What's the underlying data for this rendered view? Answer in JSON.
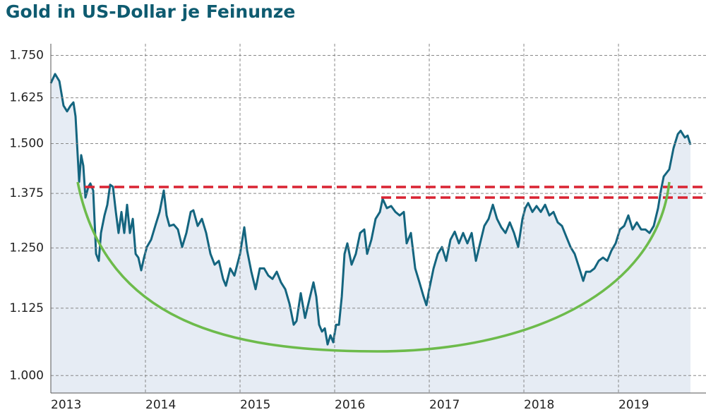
{
  "chart_data": {
    "type": "line",
    "title": "Gold in US-Dollar je Feinunze",
    "log_scale": true,
    "grid": true,
    "xlim": [
      2013,
      2019.925
    ],
    "xticks": [
      2013,
      2014,
      2015,
      2016,
      2017,
      2018,
      2019
    ],
    "ylim": [
      970,
      1786
    ],
    "yticks": [
      {
        "value": 1000,
        "label": "1.000"
      },
      {
        "value": 1125,
        "label": "1.125"
      },
      {
        "value": 1250,
        "label": "1.250"
      },
      {
        "value": 1375,
        "label": "1.375"
      },
      {
        "value": 1500,
        "label": "1.500"
      },
      {
        "value": 1625,
        "label": "1.625"
      },
      {
        "value": 1750,
        "label": "1.750"
      }
    ],
    "series": [
      {
        "color": "#14657f",
        "x": [
          2013.0,
          2013.045,
          2013.09,
          2013.134,
          2013.172,
          2013.209,
          2013.239,
          2013.261,
          2013.299,
          2013.321,
          2013.343,
          2013.366,
          2013.396,
          2013.418,
          2013.448,
          2013.478,
          2013.507,
          2013.53,
          2013.567,
          2013.597,
          2013.627,
          2013.657,
          2013.687,
          2013.716,
          2013.746,
          2013.776,
          2013.806,
          2013.836,
          2013.866,
          2013.896,
          2013.925,
          2013.955,
          2013.985,
          2014.015,
          2014.06,
          2014.104,
          2014.149,
          2014.194,
          2014.224,
          2014.254,
          2014.299,
          2014.343,
          2014.388,
          2014.433,
          2014.478,
          2014.507,
          2014.552,
          2014.597,
          2014.642,
          2014.687,
          2014.731,
          2014.776,
          2014.821,
          2014.851,
          2014.896,
          2014.94,
          2015.0,
          2015.045,
          2015.075,
          2015.119,
          2015.164,
          2015.209,
          2015.254,
          2015.299,
          2015.343,
          2015.388,
          2015.433,
          2015.478,
          2015.522,
          2015.567,
          2015.597,
          2015.642,
          2015.687,
          2015.731,
          2015.776,
          2015.806,
          2015.836,
          2015.866,
          2015.896,
          2015.925,
          2015.955,
          2015.985,
          2016.015,
          2016.045,
          2016.075,
          2016.104,
          2016.134,
          2016.179,
          2016.224,
          2016.269,
          2016.313,
          2016.343,
          2016.388,
          2016.433,
          2016.478,
          2016.507,
          2016.552,
          2016.597,
          2016.642,
          2016.687,
          2016.731,
          2016.761,
          2016.806,
          2016.851,
          2016.896,
          2016.94,
          2016.97,
          2017.0,
          2017.045,
          2017.09,
          2017.134,
          2017.179,
          2017.224,
          2017.269,
          2017.313,
          2017.358,
          2017.403,
          2017.448,
          2017.493,
          2017.537,
          2017.582,
          2017.627,
          2017.672,
          2017.716,
          2017.761,
          2017.806,
          2017.851,
          2017.896,
          2017.94,
          2017.985,
          2018.015,
          2018.045,
          2018.09,
          2018.134,
          2018.179,
          2018.224,
          2018.269,
          2018.313,
          2018.358,
          2018.403,
          2018.448,
          2018.493,
          2018.537,
          2018.582,
          2018.627,
          2018.657,
          2018.701,
          2018.746,
          2018.791,
          2018.836,
          2018.881,
          2018.925,
          2018.97,
          2019.015,
          2019.06,
          2019.104,
          2019.149,
          2019.194,
          2019.239,
          2019.284,
          2019.328,
          2019.373,
          2019.418,
          2019.448,
          2019.478,
          2019.507,
          2019.537,
          2019.582,
          2019.627,
          2019.657,
          2019.701,
          2019.731,
          2019.761
        ],
        "values": [
          1667,
          1694,
          1673,
          1603,
          1587,
          1603,
          1612,
          1573,
          1403,
          1470,
          1443,
          1365,
          1391,
          1399,
          1382,
          1237,
          1222,
          1283,
          1323,
          1348,
          1396,
          1391,
          1331,
          1283,
          1331,
          1283,
          1348,
          1283,
          1315,
          1237,
          1229,
          1202,
          1229,
          1252,
          1268,
          1299,
          1331,
          1382,
          1323,
          1299,
          1302,
          1291,
          1252,
          1283,
          1331,
          1335,
          1299,
          1315,
          1283,
          1237,
          1214,
          1222,
          1184,
          1170,
          1206,
          1191,
          1237,
          1296,
          1244,
          1199,
          1163,
          1206,
          1206,
          1191,
          1184,
          1199,
          1177,
          1163,
          1134,
          1093,
          1100,
          1155,
          1106,
          1141,
          1177,
          1148,
          1093,
          1080,
          1086,
          1056,
          1073,
          1060,
          1093,
          1093,
          1148,
          1237,
          1260,
          1214,
          1237,
          1283,
          1291,
          1237,
          1268,
          1315,
          1331,
          1362,
          1340,
          1345,
          1331,
          1323,
          1331,
          1260,
          1283,
          1206,
          1177,
          1148,
          1131,
          1163,
          1206,
          1237,
          1252,
          1222,
          1268,
          1286,
          1260,
          1283,
          1260,
          1283,
          1222,
          1260,
          1299,
          1315,
          1348,
          1315,
          1296,
          1283,
          1307,
          1283,
          1252,
          1315,
          1340,
          1352,
          1331,
          1345,
          1331,
          1348,
          1323,
          1331,
          1307,
          1299,
          1275,
          1252,
          1237,
          1209,
          1180,
          1199,
          1199,
          1206,
          1222,
          1229,
          1222,
          1244,
          1260,
          1291,
          1299,
          1323,
          1291,
          1307,
          1291,
          1291,
          1283,
          1299,
          1340,
          1382,
          1416,
          1425,
          1434,
          1488,
          1525,
          1534,
          1516,
          1521,
          1497
        ]
      }
    ]
  }
}
